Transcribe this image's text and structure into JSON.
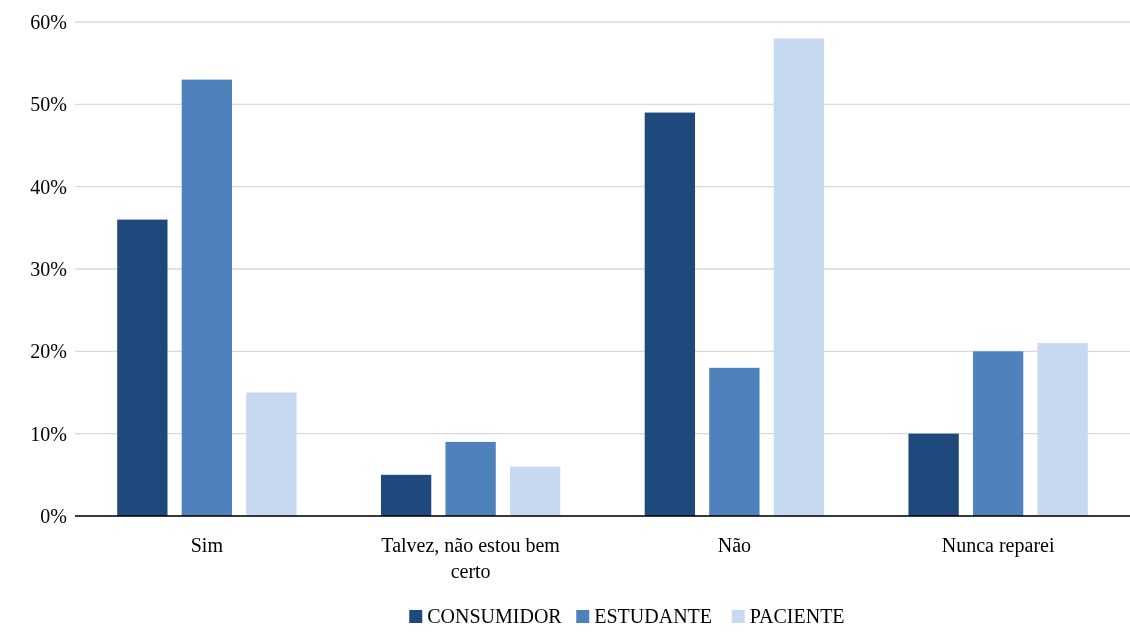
{
  "chart_data": {
    "type": "bar",
    "categories": [
      "Sim",
      "Talvez, não estou bem certo",
      "Não",
      "Nunca reparei"
    ],
    "series": [
      {
        "name": "CONSUMIDOR",
        "color": "#1f497d",
        "values": [
          36,
          5,
          49,
          10
        ]
      },
      {
        "name": "ESTUDANTE",
        "color": "#4f81bd",
        "values": [
          53,
          9,
          18,
          20
        ]
      },
      {
        "name": "PACIENTE",
        "color": "#c6d9f0",
        "values": [
          15,
          6,
          58,
          21
        ]
      }
    ],
    "ylim": [
      0,
      60
    ],
    "yticks": [
      {
        "value": 0,
        "label": "0%"
      },
      {
        "value": 10,
        "label": "10%"
      },
      {
        "value": 20,
        "label": "20%"
      },
      {
        "value": 30,
        "label": "30%"
      },
      {
        "value": 40,
        "label": "40%"
      },
      {
        "value": 50,
        "label": "50%"
      },
      {
        "value": 60,
        "label": "60%"
      }
    ],
    "grid": "y",
    "legend": "bottom"
  }
}
